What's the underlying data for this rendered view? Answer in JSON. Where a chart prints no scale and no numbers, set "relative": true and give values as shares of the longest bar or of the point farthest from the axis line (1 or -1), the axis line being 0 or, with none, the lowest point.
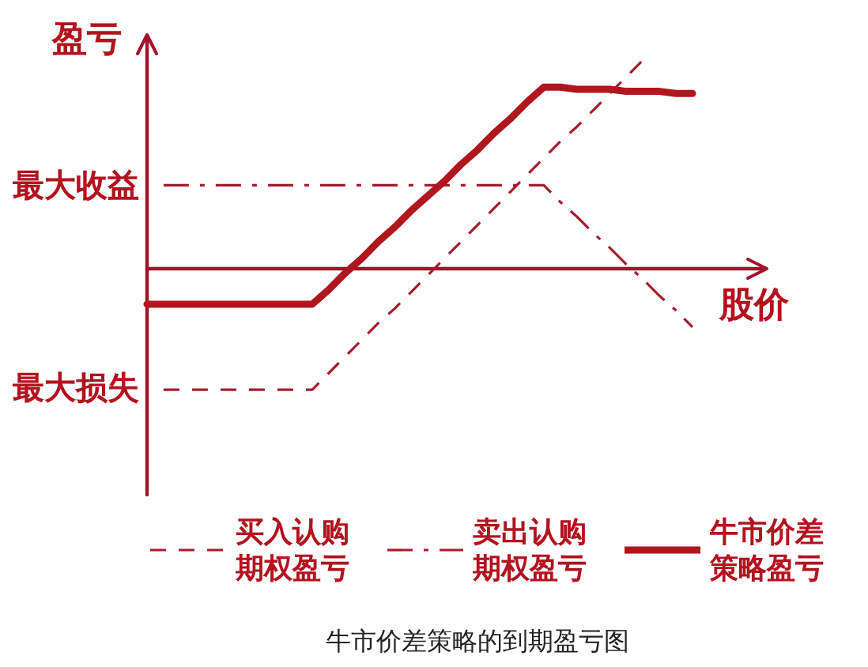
{
  "chart_data": {
    "type": "line",
    "relative": true,
    "title": "牛市价差策略的到期盈亏图",
    "xlabel": "股价",
    "ylabel": "盈亏",
    "categories": [
      null,
      null,
      null,
      null,
      null,
      null,
      null,
      null,
      null,
      null,
      null,
      null,
      null,
      null,
      null,
      null,
      null,
      null,
      null,
      null,
      null,
      null,
      null,
      null,
      null,
      null,
      null,
      null,
      null,
      null,
      null,
      null,
      null,
      null
    ],
    "series": [
      {
        "name": "买入认购期权盈亏",
        "color": "#a51d2d",
        "line_style": "dashed",
        "values": [
          null,
          -0.58,
          -0.58,
          -0.58,
          -0.58,
          -0.58,
          -0.58,
          -0.58,
          -0.58,
          -0.58,
          -0.58,
          -0.5,
          -0.42,
          -0.34,
          -0.26,
          -0.19,
          -0.11,
          -0.03,
          0.05,
          0.13,
          0.21,
          0.29,
          0.37,
          0.45,
          0.53,
          0.61,
          0.68,
          0.76,
          0.84,
          0.92,
          1.0,
          null,
          null,
          null
        ]
      },
      {
        "name": "卖出认购期权盈亏",
        "color": "#a51d2d",
        "line_style": "dashdot",
        "values": [
          null,
          0.4,
          0.4,
          0.4,
          0.4,
          0.4,
          0.4,
          0.4,
          0.4,
          0.4,
          0.4,
          0.4,
          0.4,
          0.4,
          0.4,
          0.4,
          0.4,
          0.4,
          0.4,
          0.4,
          0.4,
          0.4,
          0.4,
          0.4,
          0.4,
          0.32,
          0.25,
          0.17,
          0.1,
          0.02,
          -0.05,
          -0.13,
          -0.2,
          -0.28
        ]
      },
      {
        "name": "牛市价差策略盈亏",
        "color": "#b0161e",
        "line_style": "solid",
        "values": [
          -0.17,
          -0.17,
          -0.17,
          -0.17,
          -0.17,
          -0.17,
          -0.17,
          -0.17,
          -0.17,
          -0.17,
          -0.17,
          -0.1,
          -0.02,
          0.05,
          0.13,
          0.2,
          0.28,
          0.35,
          0.42,
          0.5,
          0.57,
          0.65,
          0.72,
          0.8,
          0.87,
          0.87,
          0.86,
          0.86,
          0.86,
          0.85,
          0.85,
          0.85,
          0.84,
          0.84
        ]
      }
    ],
    "ref_lines": [
      {
        "axis": "y",
        "value": 0,
        "color": "#a3122a",
        "line_style": "solid"
      }
    ],
    "annotations": [
      "最大收益",
      "最大损失"
    ],
    "legend": "bottom"
  }
}
